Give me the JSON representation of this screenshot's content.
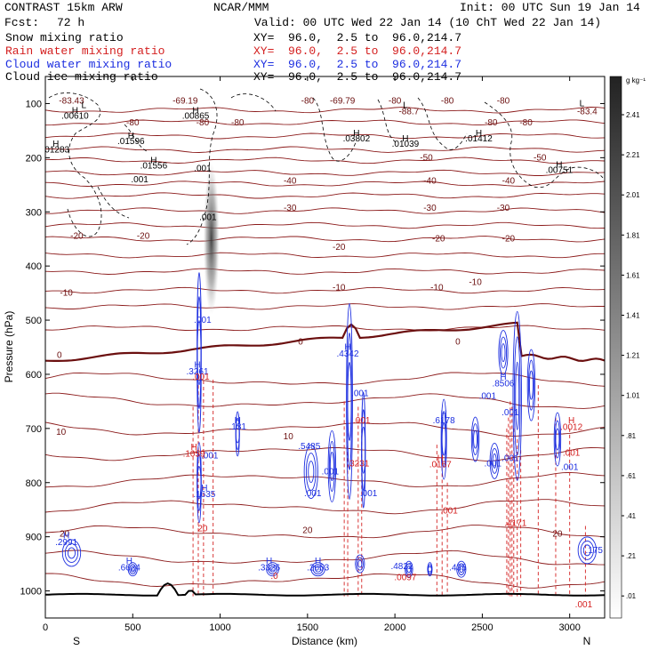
{
  "header": {
    "model": "CONTRAST 15km ARW",
    "center": "NCAR/MMM",
    "init": "Init: 00 UTC Sun 19 Jan 14",
    "fcst_label": "Fcst:",
    "fcst_value": "72 h",
    "valid": "Valid: 00 UTC Wed 22 Jan 14 (10 ChT Wed 22 Jan 14)"
  },
  "fields": [
    {
      "name": "Snow mixing ratio",
      "xy": "XY=  96.0,  2.5 to  96.0,214.7",
      "color": "#000000"
    },
    {
      "name": "Rain water mixing ratio",
      "xy": "XY=  96.0,  2.5 to  96.0,214.7",
      "color": "#d42020"
    },
    {
      "name": "Cloud water mixing ratio",
      "xy": "XY=  96.0,  2.5 to  96.0,214.7",
      "color": "#1c2ee0"
    },
    {
      "name": "Cloud ice mixing ratio",
      "xy": "XY=  96.0,  2.5 to  96.0,214.7",
      "color": "#000000"
    }
  ],
  "chart_data": {
    "type": "contour",
    "ylabel": "Pressure (hPa)",
    "xlabel": "Distance (km)",
    "x_ticks": [
      0,
      500,
      1000,
      1500,
      2000,
      2500,
      3000
    ],
    "y_ticks": [
      100,
      200,
      300,
      400,
      500,
      600,
      700,
      800,
      900,
      1000
    ],
    "xlim": [
      0,
      3200
    ],
    "ylim": [
      1050,
      50
    ],
    "x_end_labels": {
      "left": "S",
      "right": "N"
    },
    "colorbar": {
      "unit": "g kg⁻¹",
      "labels": [
        "2.41",
        "2.21",
        "2.01",
        "1.81",
        "1.61",
        "1.41",
        "1.21",
        "1.01",
        ".81",
        ".61",
        ".41",
        ".21",
        ".01"
      ]
    },
    "isotherm_labels": [
      {
        "x": 800,
        "p": 100,
        "text": "-69.19"
      },
      {
        "x": 1500,
        "p": 100,
        "text": "-80"
      },
      {
        "x": 1700,
        "p": 100,
        "text": "-69.79"
      },
      {
        "x": 2000,
        "p": 100,
        "text": "-80"
      },
      {
        "x": 2300,
        "p": 100,
        "text": "-80"
      },
      {
        "x": 2620,
        "p": 100,
        "text": "-80"
      },
      {
        "x": 3100,
        "p": 120,
        "text": "-83.4"
      },
      {
        "x": 500,
        "p": 140,
        "text": "-80"
      },
      {
        "x": 900,
        "p": 140,
        "text": "-80"
      },
      {
        "x": 1100,
        "p": 140,
        "text": "-80"
      },
      {
        "x": 2080,
        "p": 120,
        "text": "-88.7"
      },
      {
        "x": 2550,
        "p": 140,
        "text": "-80"
      },
      {
        "x": 2750,
        "p": 140,
        "text": "-80"
      },
      {
        "x": 150,
        "p": 100,
        "text": "-83.43"
      },
      {
        "x": 2180,
        "p": 205,
        "text": "-50"
      },
      {
        "x": 2830,
        "p": 205,
        "text": "-50"
      },
      {
        "x": 1400,
        "p": 248,
        "text": "-40"
      },
      {
        "x": 2200,
        "p": 248,
        "text": "-40"
      },
      {
        "x": 2650,
        "p": 248,
        "text": "-40"
      },
      {
        "x": 1400,
        "p": 298,
        "text": "-30"
      },
      {
        "x": 2200,
        "p": 298,
        "text": "-30"
      },
      {
        "x": 2620,
        "p": 298,
        "text": "-30"
      },
      {
        "x": 180,
        "p": 350,
        "text": "-20"
      },
      {
        "x": 560,
        "p": 350,
        "text": "-20"
      },
      {
        "x": 1680,
        "p": 370,
        "text": "-20"
      },
      {
        "x": 2250,
        "p": 355,
        "text": "-20"
      },
      {
        "x": 2650,
        "p": 355,
        "text": "-20"
      },
      {
        "x": 120,
        "p": 455,
        "text": "-10"
      },
      {
        "x": 1680,
        "p": 445,
        "text": "-10"
      },
      {
        "x": 2240,
        "p": 445,
        "text": "-10"
      },
      {
        "x": 2460,
        "p": 435,
        "text": "-10"
      },
      {
        "x": 80,
        "p": 570,
        "text": "0"
      },
      {
        "x": 1460,
        "p": 545,
        "text": "0"
      },
      {
        "x": 2360,
        "p": 545,
        "text": "0"
      },
      {
        "x": 90,
        "p": 712,
        "text": "10"
      },
      {
        "x": 1390,
        "p": 720,
        "text": "10"
      },
      {
        "x": 1500,
        "p": 893,
        "text": "20"
      },
      {
        "x": 2930,
        "p": 900,
        "text": "20"
      },
      {
        "x": 110,
        "p": 900,
        "text": "20"
      }
    ],
    "snow_labels": [
      {
        "x": 170,
        "p": 118,
        "text": "H"
      },
      {
        "x": 170,
        "p": 128,
        "text": ".00610"
      },
      {
        "x": 860,
        "p": 118,
        "text": "H"
      },
      {
        "x": 860,
        "p": 128,
        "text": ".00865"
      },
      {
        "x": 490,
        "p": 165,
        "text": "H"
      },
      {
        "x": 490,
        "p": 175,
        "text": ".01596"
      },
      {
        "x": 60,
        "p": 180,
        "text": "H"
      },
      {
        "x": 60,
        "p": 190,
        "text": ".01283"
      },
      {
        "x": 620,
        "p": 210,
        "text": "H"
      },
      {
        "x": 620,
        "p": 220,
        "text": ".01556"
      },
      {
        "x": 540,
        "p": 245,
        "text": ".001"
      },
      {
        "x": 900,
        "p": 225,
        "text": ".001"
      },
      {
        "x": 930,
        "p": 315,
        "text": ".001"
      },
      {
        "x": 1780,
        "p": 160,
        "text": "H"
      },
      {
        "x": 1780,
        "p": 170,
        "text": ".03802"
      },
      {
        "x": 2060,
        "p": 170,
        "text": "H"
      },
      {
        "x": 2060,
        "p": 180,
        "text": ".01039"
      },
      {
        "x": 2480,
        "p": 160,
        "text": "H"
      },
      {
        "x": 2480,
        "p": 170,
        "text": ".01412"
      },
      {
        "x": 2940,
        "p": 218,
        "text": "H"
      },
      {
        "x": 2940,
        "p": 228,
        "text": ".00751"
      },
      {
        "x": 220,
        "p": 108,
        "text": "L"
      },
      {
        "x": 2060,
        "p": 108,
        "text": "L"
      },
      {
        "x": 3070,
        "p": 105,
        "text": "L"
      }
    ],
    "cloud_labels": [
      {
        "x": 900,
        "p": 505,
        "text": ".001"
      },
      {
        "x": 870,
        "p": 588,
        "text": "H"
      },
      {
        "x": 870,
        "p": 600,
        "text": ".3261"
      },
      {
        "x": 1730,
        "p": 555,
        "text": "H"
      },
      {
        "x": 1730,
        "p": 567,
        "text": ".4342"
      },
      {
        "x": 1800,
        "p": 640,
        "text": ".001"
      },
      {
        "x": 1100,
        "p": 690,
        "text": "H"
      },
      {
        "x": 1100,
        "p": 702,
        "text": ".131"
      },
      {
        "x": 1510,
        "p": 738,
        "text": ".5485"
      },
      {
        "x": 1630,
        "p": 785,
        "text": ".001"
      },
      {
        "x": 1530,
        "p": 825,
        "text": ".001"
      },
      {
        "x": 1850,
        "p": 825,
        "text": ".001"
      },
      {
        "x": 910,
        "p": 815,
        "text": "H"
      },
      {
        "x": 910,
        "p": 827,
        "text": ".1635"
      },
      {
        "x": 2280,
        "p": 678,
        "text": "H"
      },
      {
        "x": 2280,
        "p": 690,
        "text": ".6178"
      },
      {
        "x": 2530,
        "p": 645,
        "text": ".001"
      },
      {
        "x": 2620,
        "p": 610,
        "text": "H"
      },
      {
        "x": 2620,
        "p": 622,
        "text": ".8506"
      },
      {
        "x": 2560,
        "p": 770,
        "text": ".001"
      },
      {
        "x": 2660,
        "p": 676,
        "text": ".001"
      },
      {
        "x": 2660,
        "p": 760,
        "text": ".001"
      },
      {
        "x": 3000,
        "p": 777,
        "text": ".001"
      },
      {
        "x": 940,
        "p": 755,
        "text": ".001"
      },
      {
        "x": 120,
        "p": 903,
        "text": "H"
      },
      {
        "x": 120,
        "p": 915,
        "text": ".2991"
      },
      {
        "x": 480,
        "p": 950,
        "text": "H"
      },
      {
        "x": 480,
        "p": 962,
        "text": ".6624"
      },
      {
        "x": 1280,
        "p": 950,
        "text": "H"
      },
      {
        "x": 1280,
        "p": 962,
        "text": ".3326"
      },
      {
        "x": 1560,
        "p": 950,
        "text": "H"
      },
      {
        "x": 1560,
        "p": 962,
        "text": ".2653"
      },
      {
        "x": 2040,
        "p": 960,
        "text": ".4822"
      },
      {
        "x": 2360,
        "p": 962,
        "text": ".435"
      },
      {
        "x": 3140,
        "p": 930,
        "text": ".175"
      }
    ],
    "rain_labels": [
      {
        "x": 890,
        "p": 610,
        "text": ".001"
      },
      {
        "x": 850,
        "p": 740,
        "text": "H"
      },
      {
        "x": 850,
        "p": 752,
        "text": ".1059"
      },
      {
        "x": 1810,
        "p": 690,
        "text": ".001"
      },
      {
        "x": 1790,
        "p": 770,
        "text": ".3231"
      },
      {
        "x": 2260,
        "p": 760,
        "text": "H"
      },
      {
        "x": 2260,
        "p": 772,
        "text": ".0167"
      },
      {
        "x": 2310,
        "p": 857,
        "text": ".001"
      },
      {
        "x": 2690,
        "p": 880,
        "text": ".4171"
      },
      {
        "x": 3010,
        "p": 690,
        "text": "H"
      },
      {
        "x": 3010,
        "p": 703,
        "text": ".0012"
      },
      {
        "x": 3010,
        "p": 750,
        "text": ".001"
      },
      {
        "x": 900,
        "p": 890,
        "text": "20"
      },
      {
        "x": 1310,
        "p": 978,
        "text": ".0"
      },
      {
        "x": 2060,
        "p": 980,
        "text": ".0097"
      },
      {
        "x": 3080,
        "p": 1030,
        "text": ".001"
      }
    ]
  }
}
